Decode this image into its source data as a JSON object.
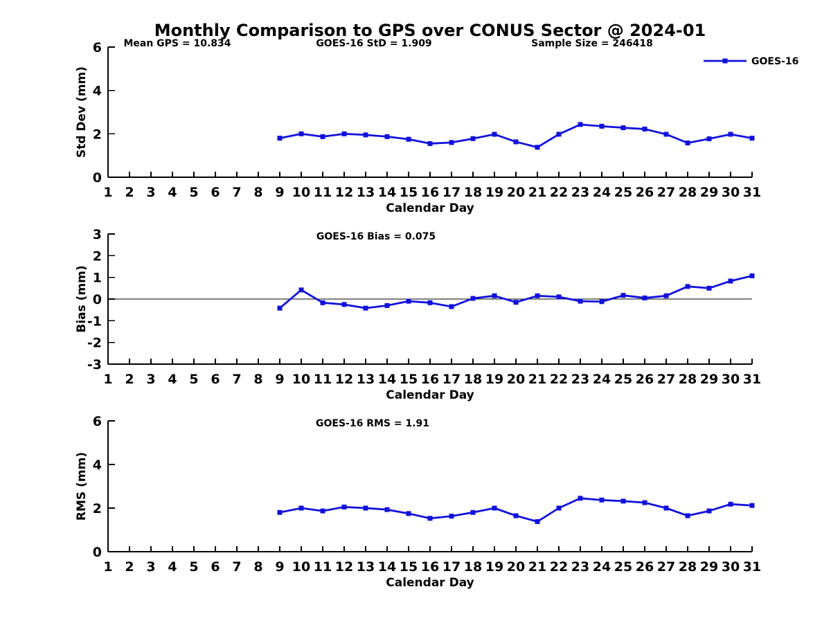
{
  "title": "Monthly Comparison to GPS over CONUS Sector @ 2024-01",
  "legend": {
    "label": "GOES-16",
    "marker": "square-icon"
  },
  "colors": {
    "line": "#1111dd",
    "axis": "#000000",
    "background": "#ffffff"
  },
  "chart_data": [
    {
      "type": "line",
      "name": "std-dev",
      "ylabel": "Std Dev (mm)",
      "xlabel": "Calendar Day",
      "ylim": [
        0,
        6
      ],
      "yticks": [
        0,
        2,
        4,
        6
      ],
      "xlim": [
        1,
        31
      ],
      "xticks": [
        1,
        2,
        3,
        4,
        5,
        6,
        7,
        8,
        9,
        10,
        11,
        12,
        13,
        14,
        15,
        16,
        17,
        18,
        19,
        20,
        21,
        22,
        23,
        24,
        25,
        26,
        27,
        28,
        29,
        30,
        31
      ],
      "zero_line": false,
      "legend_visible": true,
      "annotations": [
        {
          "text": "Mean GPS = 10.834"
        },
        {
          "text": "GOES-16 StD = 1.909"
        },
        {
          "text": "Sample Size = 246418"
        }
      ],
      "x": [
        9,
        10,
        11,
        12,
        13,
        14,
        15,
        16,
        17,
        18,
        19,
        20,
        21,
        22,
        23,
        24,
        25,
        26,
        27,
        28,
        29,
        30,
        31
      ],
      "series": [
        {
          "name": "GOES-16",
          "values": [
            1.8,
            2.0,
            1.87,
            2.0,
            1.95,
            1.87,
            1.75,
            1.55,
            1.6,
            1.78,
            1.98,
            1.63,
            1.38,
            1.98,
            2.43,
            2.35,
            2.28,
            2.22,
            1.98,
            1.58,
            1.77,
            1.98,
            1.8
          ]
        }
      ]
    },
    {
      "type": "line",
      "name": "bias",
      "ylabel": "Bias (mm)",
      "xlabel": "Calendar Day",
      "ylim": [
        -3,
        3
      ],
      "yticks": [
        -3,
        -2,
        -1,
        0,
        1,
        2,
        3
      ],
      "xlim": [
        1,
        31
      ],
      "xticks": [
        1,
        2,
        3,
        4,
        5,
        6,
        7,
        8,
        9,
        10,
        11,
        12,
        13,
        14,
        15,
        16,
        17,
        18,
        19,
        20,
        21,
        22,
        23,
        24,
        25,
        26,
        27,
        28,
        29,
        30,
        31
      ],
      "zero_line": true,
      "legend_visible": false,
      "annotations": [
        {
          "text": "GOES-16 Bias = 0.075"
        }
      ],
      "x": [
        9,
        10,
        11,
        12,
        13,
        14,
        15,
        16,
        17,
        18,
        19,
        20,
        21,
        22,
        23,
        24,
        25,
        26,
        27,
        28,
        29,
        30,
        31
      ],
      "series": [
        {
          "name": "GOES-16",
          "values": [
            -0.42,
            0.42,
            -0.17,
            -0.25,
            -0.42,
            -0.3,
            -0.1,
            -0.17,
            -0.35,
            0.03,
            0.15,
            -0.15,
            0.15,
            0.1,
            -0.1,
            -0.12,
            0.17,
            0.05,
            0.15,
            0.58,
            0.5,
            0.83,
            1.07
          ]
        }
      ]
    },
    {
      "type": "line",
      "name": "rms",
      "ylabel": "RMS (mm)",
      "xlabel": "Calendar Day",
      "ylim": [
        0,
        6
      ],
      "yticks": [
        0,
        2,
        4,
        6
      ],
      "xlim": [
        1,
        31
      ],
      "xticks": [
        1,
        2,
        3,
        4,
        5,
        6,
        7,
        8,
        9,
        10,
        11,
        12,
        13,
        14,
        15,
        16,
        17,
        18,
        19,
        20,
        21,
        22,
        23,
        24,
        25,
        26,
        27,
        28,
        29,
        30,
        31
      ],
      "zero_line": false,
      "legend_visible": false,
      "annotations": [
        {
          "text": "GOES-16 RMS = 1.91"
        }
      ],
      "x": [
        9,
        10,
        11,
        12,
        13,
        14,
        15,
        16,
        17,
        18,
        19,
        20,
        21,
        22,
        23,
        24,
        25,
        26,
        27,
        28,
        29,
        30,
        31
      ],
      "series": [
        {
          "name": "GOES-16",
          "values": [
            1.8,
            2.0,
            1.87,
            2.05,
            2.0,
            1.93,
            1.75,
            1.53,
            1.63,
            1.8,
            2.0,
            1.65,
            1.38,
            2.0,
            2.45,
            2.37,
            2.32,
            2.25,
            2.0,
            1.65,
            1.87,
            2.18,
            2.12
          ]
        }
      ]
    }
  ]
}
